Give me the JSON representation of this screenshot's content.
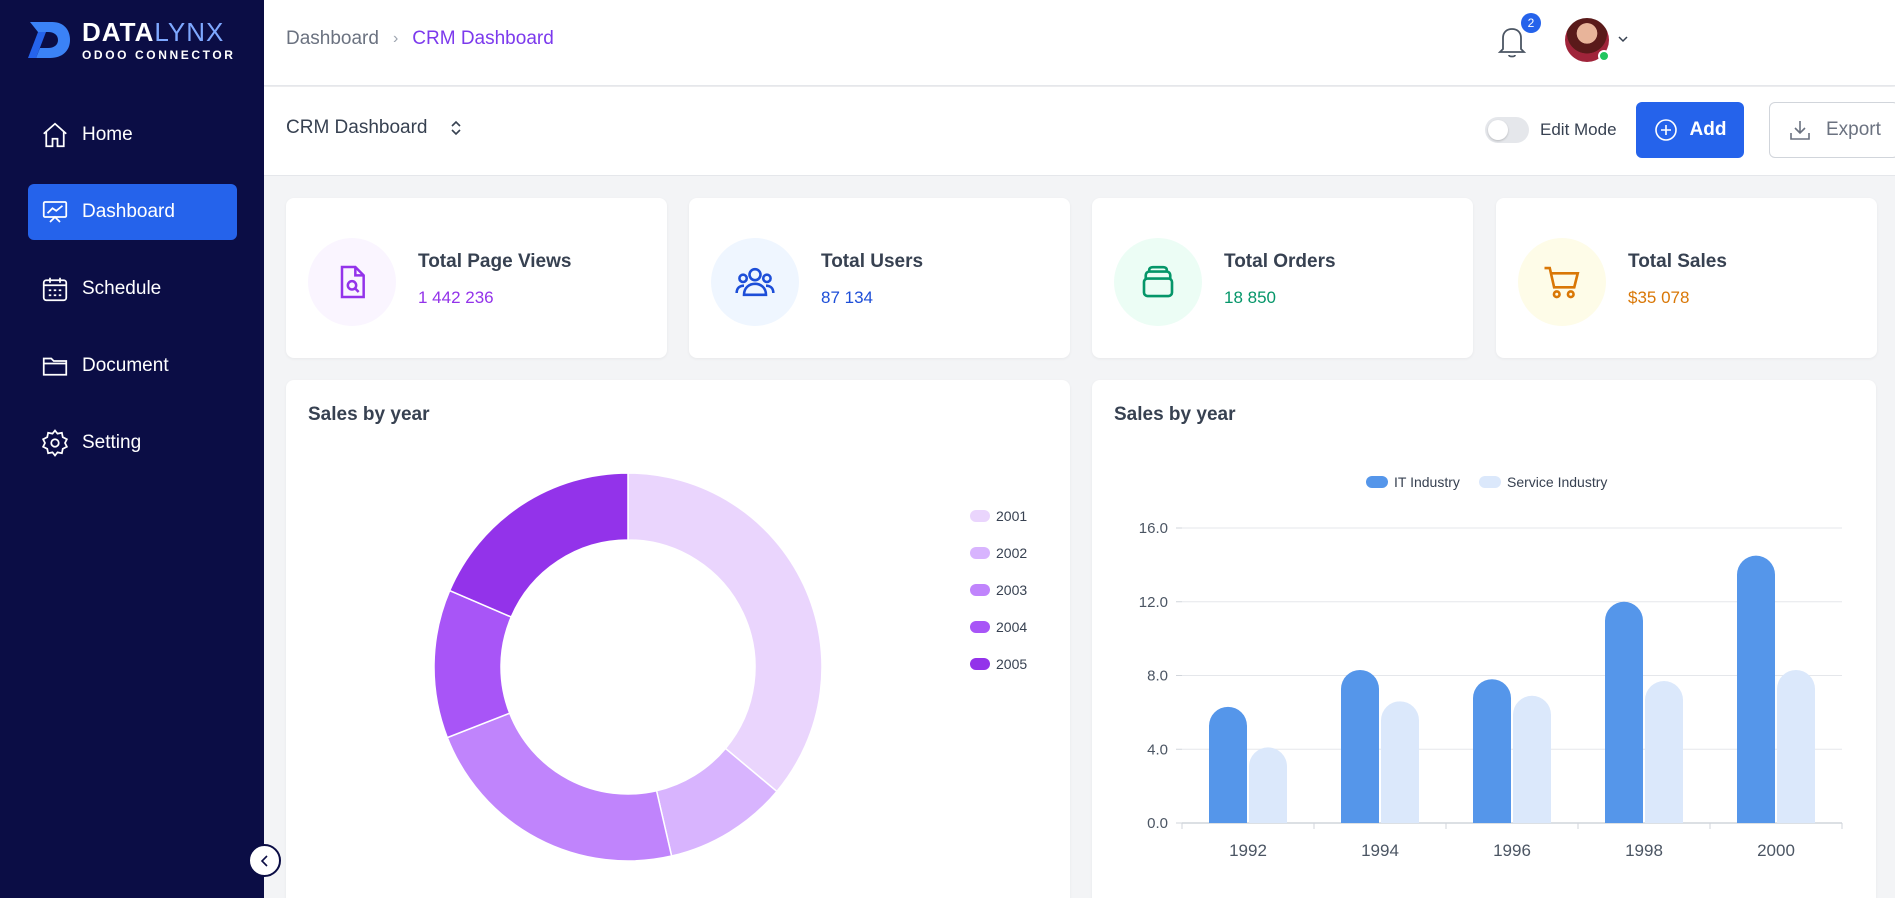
{
  "brand": {
    "name_a": "DATA",
    "name_b": "LYNX",
    "subtitle": "ODOO CONNECTOR"
  },
  "sidebar": {
    "items": [
      {
        "label": "Home",
        "icon": "home-icon",
        "active": false
      },
      {
        "label": "Dashboard",
        "icon": "presentation-chart-icon",
        "active": true
      },
      {
        "label": "Schedule",
        "icon": "calendar-icon",
        "active": false
      },
      {
        "label": "Document",
        "icon": "folder-icon",
        "active": false
      },
      {
        "label": "Setting",
        "icon": "gear-icon",
        "active": false
      }
    ]
  },
  "header": {
    "breadcrumb_root": "Dashboard",
    "breadcrumb_current": "CRM Dashboard",
    "notification_count": "2"
  },
  "toolbar": {
    "dashboard_select": "CRM Dashboard",
    "edit_mode_label": "Edit Mode",
    "edit_mode_on": false,
    "add_label": "Add",
    "export_label": "Export"
  },
  "stats": [
    {
      "title": "Total Page Views",
      "value": "1 442 236",
      "icon": "document-search-icon",
      "color": "#9333ea",
      "bg": "#faf5ff"
    },
    {
      "title": "Total Users",
      "value": "87 134",
      "icon": "users-icon",
      "color": "#1d4ed8",
      "bg": "#eff6ff"
    },
    {
      "title": "Total Orders",
      "value": "18 850",
      "icon": "stack-icon",
      "color": "#059669",
      "bg": "#ecfdf5"
    },
    {
      "title": "Total Sales",
      "value": "$35 078",
      "icon": "cart-icon",
      "color": "#d97706",
      "bg": "#fefce8"
    }
  ],
  "charts": {
    "donut_title": "Sales by year",
    "bar_title": "Sales by year"
  },
  "chart_data": [
    {
      "type": "pie",
      "title": "Sales by year",
      "donut": true,
      "labels": [
        "2001",
        "2002",
        "2003",
        "2004",
        "2005"
      ],
      "values": [
        35,
        10,
        22,
        12,
        18
      ],
      "colors": [
        "#ead5fd",
        "#d8b4fe",
        "#c084fc",
        "#a855f7",
        "#9333ea"
      ],
      "legend": "right"
    },
    {
      "type": "bar",
      "title": "Sales by year",
      "categories": [
        "1992",
        "1994",
        "1996",
        "1998",
        "2000"
      ],
      "series": [
        {
          "name": "IT Industry",
          "values": [
            6.3,
            8.3,
            7.8,
            12.0,
            14.5
          ],
          "color": "#5596ea"
        },
        {
          "name": "Service Industry",
          "values": [
            4.1,
            6.6,
            6.9,
            7.7,
            8.3
          ],
          "color": "#dbe8fb"
        }
      ],
      "yticks": [
        "0.0",
        "4.0",
        "8.0",
        "12.0",
        "16.0"
      ],
      "ylim": [
        0,
        16
      ],
      "legend": "top",
      "grid": true
    }
  ]
}
